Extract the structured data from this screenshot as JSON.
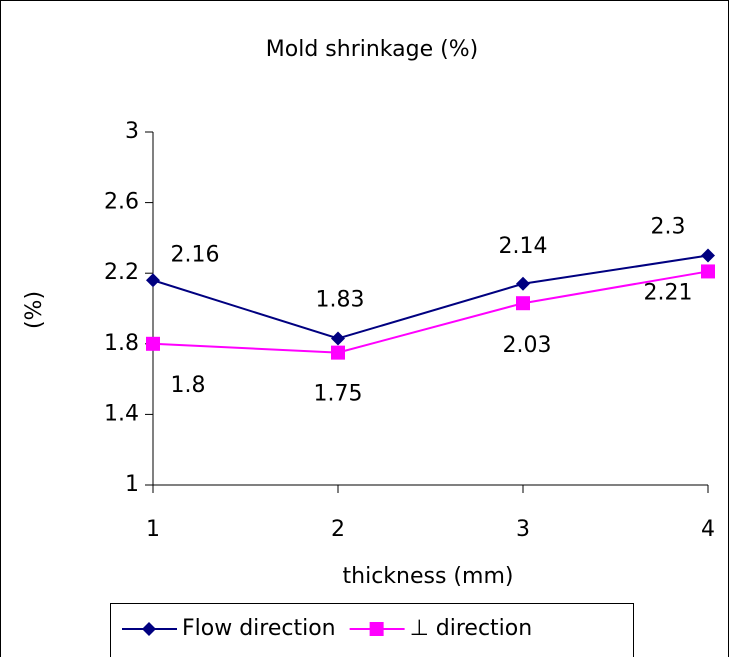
{
  "chart_data": {
    "type": "line",
    "title": "Mold shrinkage (%)",
    "x_label": "thickness (mm)",
    "y_label": "(%)",
    "x": [
      1,
      2,
      3,
      4
    ],
    "series": [
      {
        "name": "Flow direction",
        "color": "#000080",
        "marker": "diamond",
        "values": [
          2.16,
          1.83,
          2.14,
          2.3
        ]
      },
      {
        "name": "⊥ direction",
        "color": "#ff00ff",
        "marker": "square",
        "values": [
          1.8,
          1.75,
          2.03,
          2.21
        ]
      }
    ],
    "xlim": [
      1,
      4
    ],
    "xticks": [
      1,
      2,
      3,
      4
    ],
    "ylim": [
      1,
      3
    ],
    "yticks": [
      1,
      1.4,
      1.8,
      2.2,
      2.6,
      3
    ],
    "grid": false,
    "legend": "bottom"
  }
}
